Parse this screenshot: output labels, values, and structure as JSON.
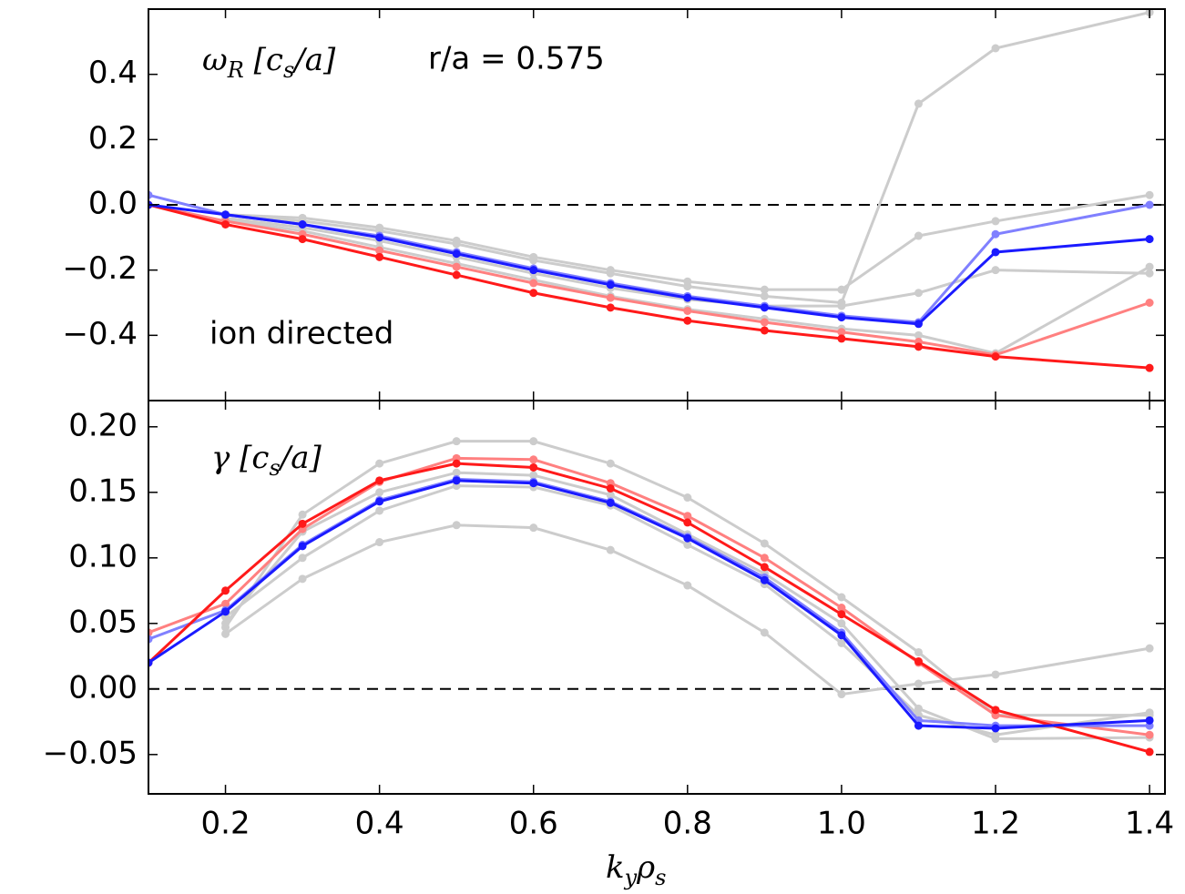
{
  "chart_data": [
    {
      "type": "line",
      "annotation_parts": [
        "ω",
        "R",
        " [c",
        "s",
        "/a]"
      ],
      "subtitle": "r/a = 0.575",
      "note": "ion directed",
      "x": [
        0.1,
        0.2,
        0.3,
        0.4,
        0.5,
        0.6,
        0.7,
        0.8,
        0.9,
        1.0,
        1.1,
        1.2,
        1.4
      ],
      "xlim": [
        0.1,
        1.42
      ],
      "ylim": [
        -0.6,
        0.6
      ],
      "yticks": [
        {
          "value": -0.4,
          "label": "−0.4"
        },
        {
          "value": -0.2,
          "label": "−0.2"
        },
        {
          "value": 0,
          "label": "0.0"
        },
        0.2,
        0.4
      ],
      "reference_line": 0,
      "series": [
        {
          "color": "#cccccc",
          "values": [
            null,
            -0.03,
            -0.05,
            -0.08,
            -0.12,
            -0.17,
            -0.21,
            -0.25,
            -0.28,
            -0.3,
            0.31,
            0.48,
            0.59
          ]
        },
        {
          "color": "#cccccc",
          "values": [
            null,
            -0.03,
            -0.04,
            -0.07,
            -0.11,
            -0.16,
            -0.2,
            -0.235,
            -0.26,
            -0.26,
            -0.095,
            -0.05,
            0.03
          ]
        },
        {
          "color": "#cccccc",
          "values": [
            null,
            -0.04,
            -0.07,
            -0.11,
            -0.16,
            -0.21,
            -0.255,
            -0.29,
            -0.31,
            -0.31,
            -0.27,
            -0.2,
            -0.21
          ]
        },
        {
          "color": "#cccccc",
          "values": [
            null,
            -0.045,
            -0.08,
            -0.13,
            -0.18,
            -0.23,
            -0.28,
            -0.32,
            -0.35,
            -0.38,
            -0.4,
            -0.455,
            -0.19
          ]
        },
        {
          "color": "#ff8080",
          "values": [
            0.0,
            -0.05,
            -0.09,
            -0.14,
            -0.19,
            -0.24,
            -0.285,
            -0.325,
            -0.36,
            -0.39,
            -0.42,
            -0.46,
            -0.3
          ]
        },
        {
          "color": "#8080ff",
          "values": [
            0.03,
            -0.03,
            -0.06,
            -0.095,
            -0.145,
            -0.195,
            -0.24,
            -0.28,
            -0.31,
            -0.34,
            -0.36,
            -0.09,
            0.0
          ]
        },
        {
          "color": "#ff1a1a",
          "values": [
            0.0,
            -0.06,
            -0.105,
            -0.16,
            -0.215,
            -0.27,
            -0.315,
            -0.355,
            -0.385,
            -0.41,
            -0.435,
            -0.465,
            -0.5
          ]
        },
        {
          "color": "#1a1aff",
          "values": [
            0.0,
            -0.03,
            -0.06,
            -0.1,
            -0.15,
            -0.2,
            -0.245,
            -0.285,
            -0.315,
            -0.345,
            -0.365,
            -0.145,
            -0.105
          ]
        }
      ]
    },
    {
      "type": "line",
      "annotation_parts": [
        "γ",
        " [c",
        "s",
        "/a]"
      ],
      "x": [
        0.1,
        0.2,
        0.3,
        0.4,
        0.5,
        0.6,
        0.7,
        0.8,
        0.9,
        1.0,
        1.1,
        1.2,
        1.4
      ],
      "xlim": [
        0.1,
        1.42
      ],
      "xticks": [
        0.2,
        0.4,
        0.6,
        0.8,
        {
          "value": 1.0,
          "label": "1.0"
        },
        1.2,
        1.4
      ],
      "xlabel_parts": [
        "k",
        "y",
        "ρ",
        "s"
      ],
      "ylim": [
        -0.08,
        0.22
      ],
      "yticks": [
        {
          "value": -0.05,
          "label": "−0.05"
        },
        {
          "value": 0,
          "label": "0.00"
        },
        0.05,
        {
          "value": 0.1,
          "label": "0.10"
        },
        0.15,
        {
          "value": 0.2,
          "label": "0.20"
        }
      ],
      "reference_line": 0,
      "series": [
        {
          "color": "#cccccc",
          "values": [
            null,
            0.047,
            0.133,
            0.172,
            0.189,
            0.189,
            0.172,
            0.146,
            0.111,
            0.07,
            0.028,
            -0.02,
            -0.02
          ]
        },
        {
          "color": "#cccccc",
          "values": [
            null,
            0.042,
            0.084,
            0.112,
            0.125,
            0.123,
            0.106,
            0.079,
            0.043,
            -0.004,
            0.004,
            0.011,
            0.031
          ]
        },
        {
          "color": "#cccccc",
          "values": [
            null,
            0.055,
            0.1,
            0.136,
            0.155,
            0.154,
            0.14,
            0.11,
            0.08,
            0.035,
            -0.02,
            -0.035,
            -0.018
          ]
        },
        {
          "color": "#cccccc",
          "values": [
            null,
            0.05,
            0.12,
            0.15,
            0.165,
            0.163,
            0.148,
            0.118,
            0.088,
            0.05,
            -0.015,
            -0.038,
            -0.037
          ]
        },
        {
          "color": "#ff8080",
          "values": [
            0.043,
            0.065,
            0.122,
            0.158,
            0.176,
            0.175,
            0.157,
            0.132,
            0.1,
            0.062,
            0.02,
            -0.02,
            -0.035
          ]
        },
        {
          "color": "#8080ff",
          "values": [
            0.038,
            0.06,
            0.11,
            0.144,
            0.16,
            0.158,
            0.143,
            0.116,
            0.085,
            0.043,
            -0.024,
            -0.028,
            -0.028
          ]
        },
        {
          "color": "#ff1a1a",
          "values": [
            0.02,
            0.075,
            0.126,
            0.159,
            0.172,
            0.169,
            0.153,
            0.127,
            0.093,
            0.057,
            0.021,
            -0.016,
            -0.048
          ]
        },
        {
          "color": "#1a1aff",
          "values": [
            0.02,
            0.059,
            0.109,
            0.143,
            0.159,
            0.157,
            0.142,
            0.115,
            0.083,
            0.041,
            -0.028,
            -0.03,
            -0.024
          ]
        }
      ]
    }
  ]
}
